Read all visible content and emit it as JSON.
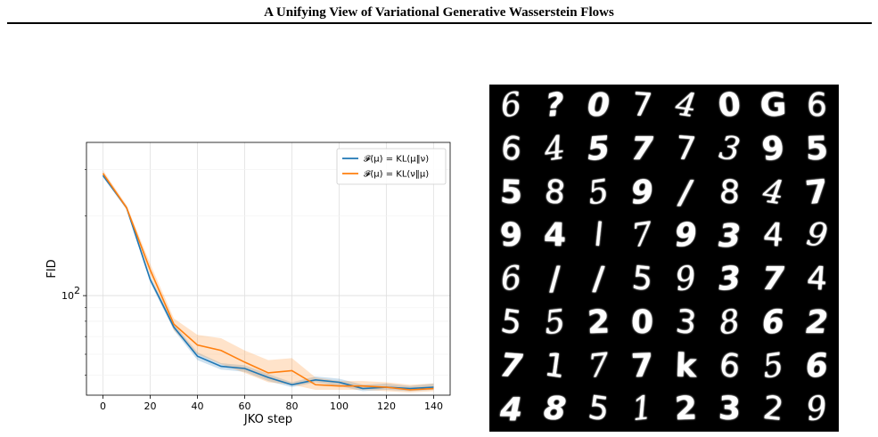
{
  "header": {
    "title": "A Unifying View of Variational Generative Wasserstein Flows"
  },
  "chart_data": {
    "type": "line",
    "xlabel": "JKO step",
    "ylabel": "FID",
    "yscale": "log",
    "xlim": [
      -7,
      147
    ],
    "ylim": [
      42,
      380
    ],
    "xticks": [
      0,
      20,
      40,
      60,
      80,
      100,
      120,
      140
    ],
    "yticks": [
      {
        "value": 100,
        "label": "10",
        "exponent": "2"
      }
    ],
    "grid": true,
    "legend_position": "top-right",
    "x": [
      0,
      10,
      20,
      30,
      40,
      50,
      60,
      70,
      80,
      90,
      100,
      110,
      120,
      130,
      140
    ],
    "series": [
      {
        "name": "𝓕(μ) = KL(μ‖ν)",
        "color": "#1f77b4",
        "values": [
          285,
          215,
          115,
          76,
          59,
          54,
          53,
          49,
          46,
          48,
          47,
          44.5,
          45,
          44.5,
          45
        ],
        "band_lower": [
          280,
          212,
          112,
          74,
          57,
          52.5,
          51.5,
          47.5,
          45,
          47,
          45.5,
          43.5,
          44,
          43.5,
          44
        ],
        "band_upper": [
          290,
          218,
          118,
          78,
          61,
          55.5,
          54.5,
          50.5,
          47,
          49.5,
          48.5,
          46,
          46.5,
          45.5,
          46.5
        ]
      },
      {
        "name": "𝓕(μ) = KL(ν‖μ)",
        "color": "#ff7f0e",
        "values": [
          290,
          215,
          125,
          78,
          65,
          62,
          56,
          51,
          52,
          46,
          45.5,
          45.5,
          45,
          44,
          44.5
        ],
        "band_lower": [
          284,
          211,
          119,
          74,
          60,
          55,
          51,
          47,
          46,
          44,
          44,
          44,
          43.5,
          43,
          43.5
        ],
        "band_upper": [
          298,
          220,
          132,
          82,
          71,
          69,
          62,
          57,
          58,
          49,
          47.5,
          47.5,
          47,
          46,
          46.5
        ]
      }
    ]
  },
  "samples": {
    "digits": [
      [
        "6",
        "?",
        "0",
        "7",
        "4",
        "0",
        "G",
        "6"
      ],
      [
        "6",
        "4",
        "5",
        "7",
        "7",
        "3",
        "9",
        "5"
      ],
      [
        "5",
        "8",
        "5",
        "9",
        "/",
        "8",
        "4",
        "7"
      ],
      [
        "9",
        "4",
        "l",
        "7",
        "9",
        "3",
        "4",
        "9"
      ],
      [
        "6",
        "/",
        "/",
        "5",
        "9",
        "3",
        "7",
        "4"
      ],
      [
        "5",
        "5",
        "2",
        "0",
        "3",
        "8",
        "6",
        "2"
      ],
      [
        "7",
        "1",
        "7",
        "7",
        "k",
        "6",
        "5",
        "6"
      ],
      [
        "4",
        "8",
        "5",
        "1",
        "2",
        "3",
        "2",
        "9"
      ]
    ]
  }
}
